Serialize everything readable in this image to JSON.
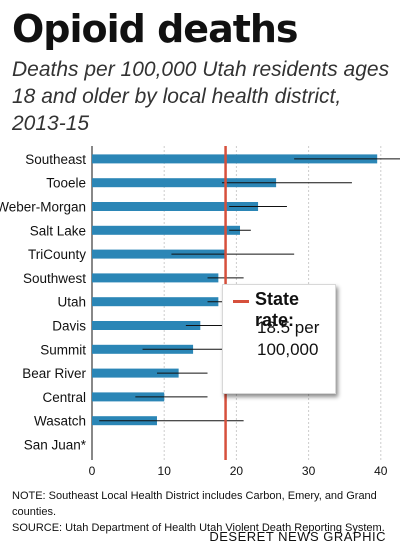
{
  "header": {
    "title": "Opioid deaths",
    "subtitle": "Deaths per 100,000 Utah residents ages 18 and older by local health district, 2013-15"
  },
  "legend": {
    "label": "State rate:",
    "value_text": "18.5 per 100,000"
  },
  "footer": {
    "note": "NOTE:  Southeast Local Health District includes Carbon, Emery, and Grand counties.",
    "source": "SOURCE:  Utah Department of Health Utah Violent Death Reporting System.",
    "credit": "DESERET NEWS GRAPHIC"
  },
  "colors": {
    "bar": "#2b86b6",
    "state_line": "#d6503c",
    "error_bar": "#111111",
    "grid": "#cccccc"
  },
  "chart_data": {
    "type": "bar",
    "orientation": "horizontal",
    "categories": [
      "Southeast",
      "Tooele",
      "Weber-Morgan",
      "Salt Lake",
      "TriCounty",
      "Southwest",
      "Utah",
      "Davis",
      "Summit",
      "Bear River",
      "Central",
      "Wasatch",
      "San Juan*"
    ],
    "values": [
      39.5,
      25.5,
      23,
      20.5,
      18.5,
      17.5,
      17.5,
      15,
      14,
      12,
      10,
      9,
      null
    ],
    "error_low": [
      28,
      18,
      19,
      19,
      11,
      16,
      16,
      13,
      7,
      9,
      6,
      1,
      null
    ],
    "error_high": [
      54.5,
      36,
      27,
      22,
      28,
      21,
      21,
      18,
      24.5,
      16,
      16,
      21,
      null
    ],
    "reference_line": {
      "value": 18.5
    },
    "xlim": [
      0,
      60
    ],
    "xticks": [
      0,
      10,
      20,
      30,
      40,
      50,
      60
    ],
    "grid": true
  }
}
